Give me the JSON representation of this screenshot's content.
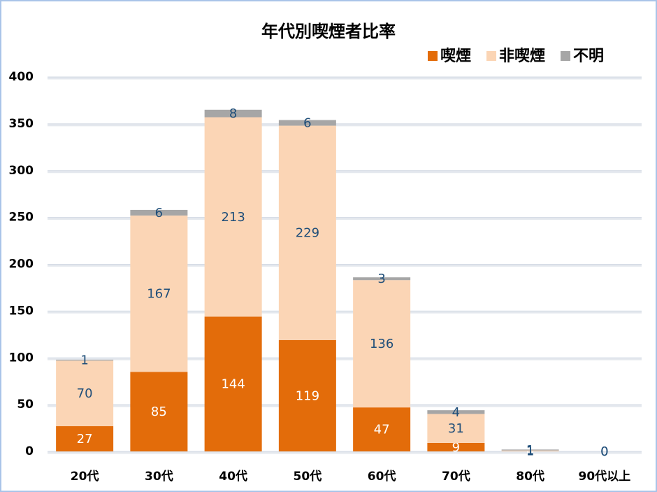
{
  "chart_data": {
    "type": "stacked_bar",
    "title": "年代別喫煙者比率",
    "categories": [
      "20代",
      "30代",
      "40代",
      "50代",
      "60代",
      "70代",
      "80代",
      "90代以上"
    ],
    "series": [
      {
        "name": "喫煙",
        "color": "#e36c0a",
        "label_color": "#ffffff",
        "values": [
          27,
          85,
          144,
          119,
          47,
          9,
          0,
          0
        ]
      },
      {
        "name": "非喫煙",
        "color": "#fbd5b5",
        "label_color": "#1f4e79",
        "values": [
          70,
          167,
          213,
          229,
          136,
          31,
          1,
          0
        ]
      },
      {
        "name": "不明",
        "color": "#a6a6a6",
        "label_color": "#1f4e79",
        "values": [
          1,
          6,
          8,
          6,
          3,
          4,
          1,
          0
        ]
      }
    ],
    "ylim": [
      0,
      400
    ],
    "yticks": [
      0,
      50,
      100,
      150,
      200,
      250,
      300,
      350,
      400
    ],
    "grid": true,
    "legend": "top-right"
  }
}
